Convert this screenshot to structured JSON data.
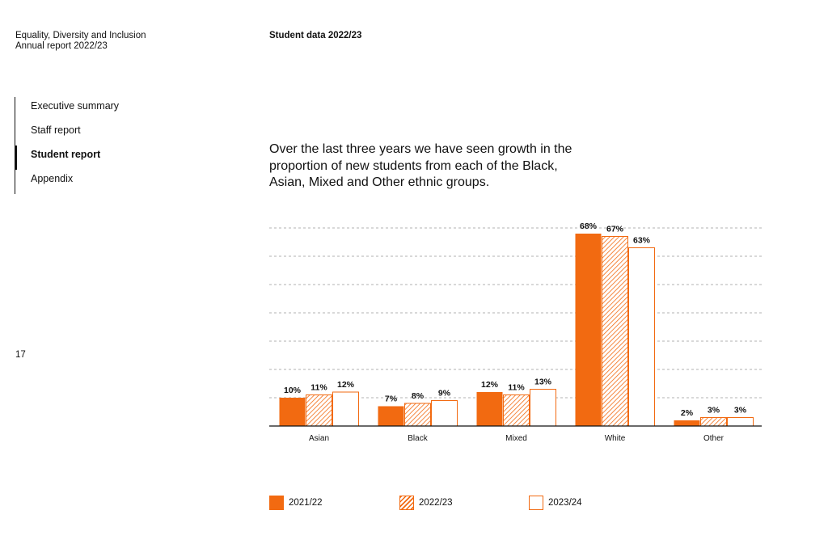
{
  "header": {
    "report_line1": "Equality, Diversity and Inclusion",
    "report_line2": "Annual report 2022/23",
    "section_title": "Student data 2022/23"
  },
  "nav": {
    "items": [
      {
        "label": "Executive summary",
        "active": false
      },
      {
        "label": "Staff report",
        "active": false
      },
      {
        "label": "Student report",
        "active": true
      },
      {
        "label": "Appendix",
        "active": false
      }
    ]
  },
  "page_number": "17",
  "headline": "Over the last three years we have seen growth in the proportion of new students from each of the Black, Asian, Mixed and Other ethnic groups.",
  "colors": {
    "accent": "#f26a11",
    "text": "#111111",
    "grid": "#999999"
  },
  "chart_data": {
    "type": "bar",
    "categories": [
      "Asian",
      "Black",
      "Mixed",
      "White",
      "Other"
    ],
    "series": [
      {
        "name": "2021/22",
        "style": "solid",
        "values": [
          10,
          7,
          12,
          68,
          2
        ]
      },
      {
        "name": "2022/23",
        "style": "hatched",
        "values": [
          11,
          8,
          11,
          67,
          3
        ]
      },
      {
        "name": "2023/24",
        "style": "outline",
        "values": [
          12,
          9,
          13,
          63,
          3
        ]
      }
    ],
    "data_labels": [
      [
        "10%",
        "7%",
        "12%",
        "68%",
        "2%"
      ],
      [
        "11%",
        "8%",
        "11%",
        "67%",
        "3%"
      ],
      [
        "12%",
        "9%",
        "13%",
        "63%",
        "3%"
      ]
    ],
    "ylim": [
      0,
      70
    ],
    "grid": true,
    "legend_position": "bottom"
  }
}
